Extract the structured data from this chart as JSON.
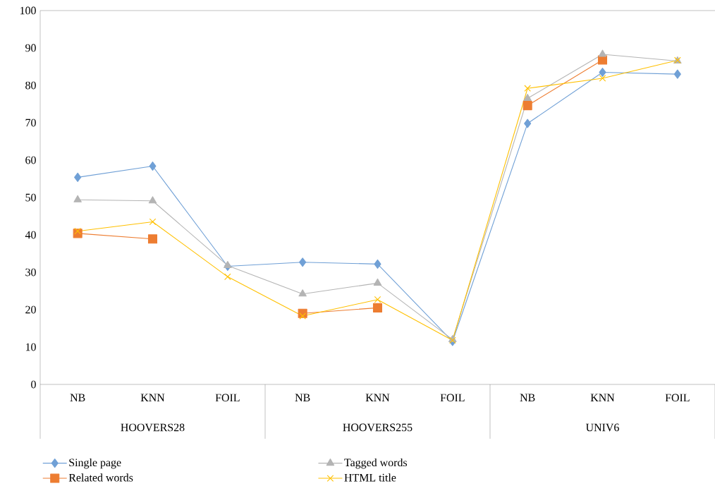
{
  "chart_data": {
    "type": "line",
    "categories": [
      "NB",
      "KNN",
      "FOIL",
      "NB",
      "KNN",
      "FOIL",
      "NB",
      "KNN",
      "FOIL"
    ],
    "annotations": [
      "HOOVERS28",
      "HOOVERS255",
      "UNIV6"
    ],
    "series": [
      {
        "name": "Single page",
        "color": "#70a0d6",
        "marker": "diamond",
        "values": [
          55.4,
          58.4,
          31.6,
          32.7,
          32.2,
          11.5,
          69.8,
          83.5,
          83.0
        ]
      },
      {
        "name": "Related words",
        "color": "#ed7d31",
        "marker": "square",
        "values": [
          40.4,
          38.9,
          null,
          19.0,
          20.5,
          null,
          74.6,
          86.8,
          null
        ]
      },
      {
        "name": "Tagged words",
        "color": "#b4b4b4",
        "marker": "triangle",
        "values": [
          49.4,
          49.1,
          31.8,
          24.2,
          27.1,
          12.0,
          76.5,
          88.3,
          86.5
        ]
      },
      {
        "name": "HTML title",
        "color": "#ffc000",
        "marker": "cross",
        "values": [
          41.0,
          43.5,
          28.8,
          18.3,
          22.7,
          11.8,
          79.2,
          81.9,
          86.7
        ]
      }
    ],
    "ylim": [
      0,
      100
    ],
    "yticks": [
      0,
      10,
      20,
      30,
      40,
      50,
      60,
      70,
      80,
      90,
      100
    ],
    "grid": false,
    "legend": "bottom",
    "line_style": "solid"
  }
}
